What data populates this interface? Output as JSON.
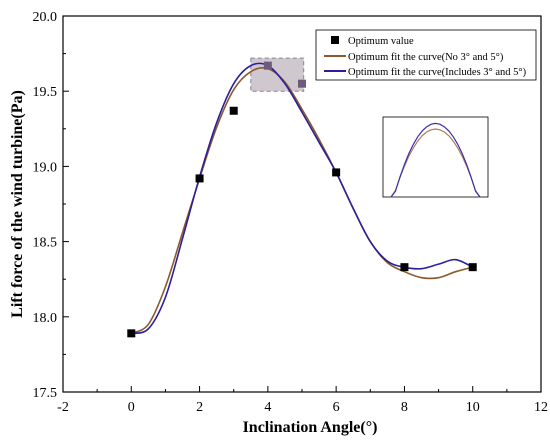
{
  "chart_data": {
    "type": "line",
    "xlabel": "Inclination Angle(°)",
    "ylabel": "Lift force of the wind turbine(Pa)",
    "xlim": [
      -2,
      12
    ],
    "ylim": [
      17.5,
      20.0
    ],
    "xticks": [
      "-2",
      "0",
      "2",
      "4",
      "6",
      "8",
      "10",
      "12"
    ],
    "yticks": [
      "17.5",
      "18.0",
      "18.5",
      "19.0",
      "19.5",
      "20.0"
    ],
    "grid": false,
    "legend_position": "top-right",
    "series": [
      {
        "name": "Optimum value",
        "kind": "scatter",
        "color": "#000000",
        "x": [
          0,
          2,
          3,
          4,
          5,
          6,
          8,
          10
        ],
        "y": [
          17.89,
          18.92,
          19.37,
          19.67,
          19.55,
          18.96,
          18.33,
          18.33
        ]
      },
      {
        "name": "Optimum fit the curve(No 3° and 5°)",
        "kind": "line",
        "color": "#8B5A2B",
        "x": [
          0,
          0.5,
          1,
          1.5,
          2,
          2.5,
          3,
          3.5,
          4,
          4.5,
          5,
          5.5,
          6,
          6.5,
          7,
          7.5,
          8,
          8.5,
          9,
          9.5,
          10
        ],
        "y": [
          17.89,
          17.95,
          18.2,
          18.56,
          18.92,
          19.26,
          19.51,
          19.63,
          19.65,
          19.56,
          19.38,
          19.18,
          18.96,
          18.72,
          18.5,
          18.36,
          18.3,
          18.26,
          18.26,
          18.3,
          18.33
        ]
      },
      {
        "name": "Optimum fit the curve(Includes 3° and 5°)",
        "kind": "line",
        "color": "#2B1F9E",
        "x": [
          0,
          0.5,
          1,
          1.5,
          2,
          2.5,
          3,
          3.5,
          4,
          4.5,
          5,
          5.5,
          6,
          6.5,
          7,
          7.5,
          8,
          8.5,
          9,
          9.5,
          10
        ],
        "y": [
          17.89,
          17.92,
          18.13,
          18.52,
          18.93,
          19.29,
          19.55,
          19.67,
          19.67,
          19.55,
          19.36,
          19.16,
          18.96,
          18.72,
          18.5,
          18.37,
          18.33,
          18.32,
          18.35,
          18.38,
          18.33
        ]
      }
    ],
    "highlight_region": {
      "x": [
        3.5,
        5.05
      ],
      "y": [
        19.5,
        19.72
      ],
      "color": "#CFC8CF"
    },
    "inset": {
      "description_kind": "zoomed peak of both fit curves",
      "brown_peak": 0.85,
      "blue_peak": 0.92
    }
  }
}
